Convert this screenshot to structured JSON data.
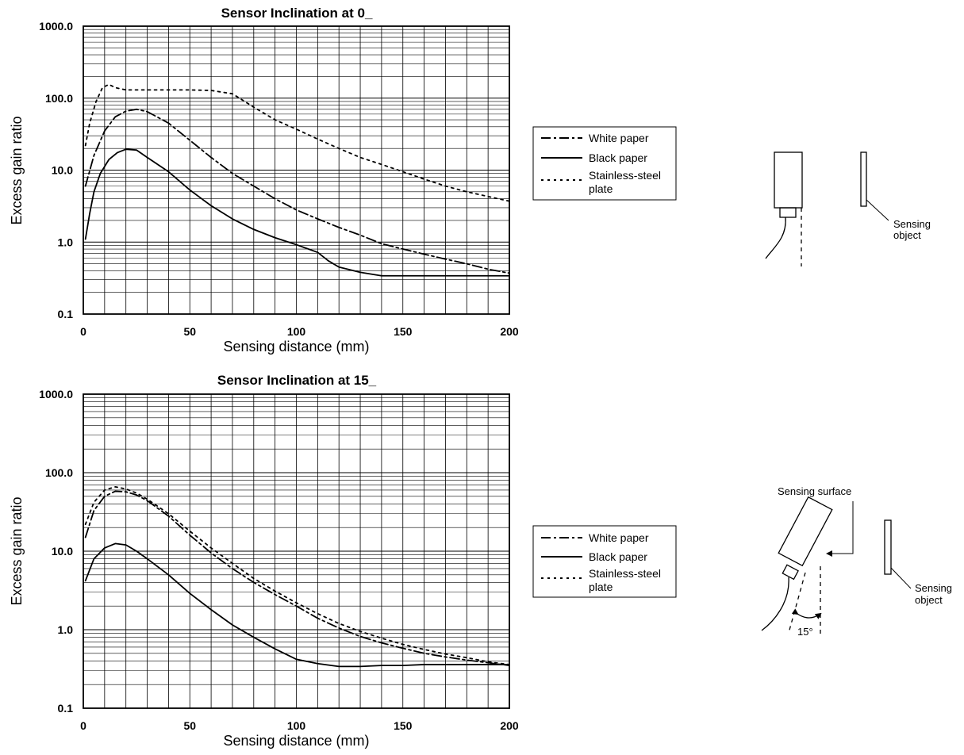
{
  "chart_data": [
    {
      "type": "line",
      "title": "Sensor Inclination at 0_",
      "xlabel": "Sensing distance (mm)",
      "ylabel": "Excess gain ratio",
      "xlim": [
        0,
        200
      ],
      "ylim": [
        0.1,
        1000
      ],
      "yscale": "log",
      "xticks": [
        "0",
        "50",
        "100",
        "150",
        "200"
      ],
      "yticks": [
        "0.1",
        "1.0",
        "10.0",
        "100.0",
        "1000.0"
      ],
      "grid": true,
      "legend_position": "right",
      "legend": [
        "White paper",
        "Black paper",
        "Stainless-steel",
        "plate"
      ],
      "series": [
        {
          "name": "White paper",
          "style": "dash-dot",
          "x": [
            1,
            5,
            10,
            15,
            20,
            25,
            30,
            40,
            50,
            60,
            70,
            80,
            90,
            100,
            110,
            120,
            130,
            140,
            150,
            160,
            170,
            180,
            190,
            200
          ],
          "y": [
            6,
            16,
            35,
            55,
            66,
            70,
            65,
            45,
            26,
            15,
            9,
            6,
            4,
            2.8,
            2.1,
            1.6,
            1.25,
            0.95,
            0.8,
            0.68,
            0.58,
            0.5,
            0.42,
            0.37
          ]
        },
        {
          "name": "Black paper",
          "style": "solid",
          "x": [
            1,
            3,
            5,
            8,
            12,
            16,
            20,
            25,
            30,
            40,
            50,
            60,
            70,
            80,
            90,
            100,
            110,
            115,
            120,
            130,
            140,
            150,
            160,
            170,
            180,
            190,
            200
          ],
          "y": [
            1.1,
            2.5,
            5,
            9,
            14,
            17.5,
            19.5,
            19,
            15,
            9.5,
            5.3,
            3.2,
            2.1,
            1.5,
            1.15,
            0.92,
            0.72,
            0.55,
            0.45,
            0.38,
            0.34,
            0.34,
            0.34,
            0.34,
            0.34,
            0.34,
            0.34
          ]
        },
        {
          "name": "Stainless-steel plate",
          "style": "dotted",
          "x": [
            1,
            3,
            6,
            9,
            12,
            15,
            20,
            30,
            40,
            50,
            60,
            70,
            80,
            90,
            100,
            110,
            120,
            130,
            140,
            150,
            160,
            170,
            180,
            190,
            200
          ],
          "y": [
            22,
            45,
            90,
            140,
            155,
            140,
            130,
            130,
            130,
            130,
            128,
            115,
            75,
            50,
            37,
            27,
            20,
            15,
            12,
            9.5,
            7.5,
            6,
            5,
            4.3,
            3.7
          ]
        }
      ]
    },
    {
      "type": "line",
      "title": "Sensor Inclination at 15_",
      "xlabel": "Sensing distance (mm)",
      "ylabel": "Excess gain ratio",
      "xlim": [
        0,
        200
      ],
      "ylim": [
        0.1,
        1000
      ],
      "yscale": "log",
      "xticks": [
        "0",
        "50",
        "100",
        "150",
        "200"
      ],
      "yticks": [
        "0.1",
        "1.0",
        "10.0",
        "100.0",
        "1000.0"
      ],
      "grid": true,
      "legend_position": "right",
      "legend": [
        "White paper",
        "Black paper",
        "Stainless-steel",
        "plate"
      ],
      "series": [
        {
          "name": "White paper",
          "style": "dash-dot",
          "x": [
            1,
            5,
            10,
            15,
            20,
            25,
            30,
            40,
            50,
            60,
            70,
            80,
            90,
            100,
            110,
            120,
            130,
            140,
            150,
            160,
            170,
            180,
            190,
            200
          ],
          "y": [
            15,
            33,
            50,
            58,
            57,
            52,
            44,
            28,
            16,
            9.5,
            6,
            4,
            2.8,
            2,
            1.4,
            1.05,
            0.82,
            0.68,
            0.58,
            0.5,
            0.45,
            0.41,
            0.38,
            0.35
          ]
        },
        {
          "name": "Black paper",
          "style": "solid",
          "x": [
            1,
            5,
            10,
            15,
            20,
            25,
            30,
            40,
            50,
            60,
            70,
            80,
            90,
            100,
            110,
            120,
            130,
            140,
            150,
            160,
            170,
            180,
            190,
            200
          ],
          "y": [
            4.2,
            8,
            11,
            12.5,
            12,
            10,
            8,
            5,
            2.9,
            1.8,
            1.15,
            0.8,
            0.57,
            0.42,
            0.37,
            0.34,
            0.34,
            0.35,
            0.35,
            0.36,
            0.36,
            0.36,
            0.36,
            0.36
          ]
        },
        {
          "name": "Stainless-steel plate",
          "style": "dotted",
          "x": [
            1,
            5,
            10,
            15,
            20,
            25,
            30,
            40,
            50,
            60,
            70,
            80,
            90,
            100,
            110,
            120,
            130,
            140,
            150,
            160,
            170,
            180,
            190,
            200
          ],
          "y": [
            22,
            42,
            60,
            66,
            62,
            55,
            46,
            30,
            18,
            11,
            7,
            4.5,
            3.1,
            2.2,
            1.6,
            1.2,
            0.95,
            0.78,
            0.65,
            0.56,
            0.49,
            0.44,
            0.39,
            0.36
          ]
        }
      ]
    }
  ],
  "diagrams": [
    {
      "labels": {
        "object": [
          "Sensing",
          "object"
        ]
      }
    },
    {
      "labels": {
        "surface": "Sensing surface",
        "object": [
          "Sensing",
          "object"
        ],
        "angle": "15°"
      }
    }
  ]
}
